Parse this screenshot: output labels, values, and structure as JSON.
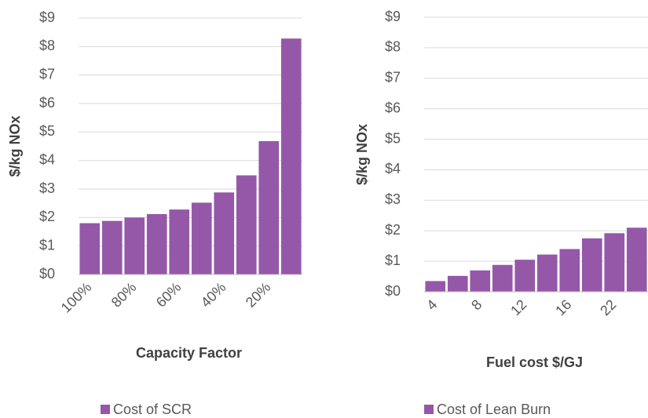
{
  "chart_data": [
    {
      "type": "bar",
      "ylabel": "$/kg NOx",
      "xlabel": "Capacity Factor",
      "categories": [
        "100%",
        null,
        "80%",
        null,
        "60%",
        null,
        "40%",
        null,
        "20%",
        null
      ],
      "series": [
        {
          "name": "Cost of SCR",
          "color": "#9558a8",
          "values": [
            1.8,
            1.88,
            2.0,
            2.12,
            2.28,
            2.52,
            2.88,
            3.48,
            4.68,
            8.28
          ]
        }
      ],
      "ylim": [
        0,
        9
      ],
      "yticks": [
        {
          "value": 0,
          "label": "$0"
        },
        {
          "value": 1,
          "label": "$1"
        },
        {
          "value": 2,
          "label": "$2"
        },
        {
          "value": 3,
          "label": "$3"
        },
        {
          "value": 4,
          "label": "$4"
        },
        {
          "value": 5,
          "label": "$5"
        },
        {
          "value": 6,
          "label": "$6"
        },
        {
          "value": 7,
          "label": "$7"
        },
        {
          "value": 8,
          "label": "$8"
        },
        {
          "value": 9,
          "label": "$9"
        }
      ],
      "grid": true
    },
    {
      "type": "bar",
      "ylabel": "$/kg NOx",
      "xlabel": "Fuel cost $/GJ",
      "categories": [
        "4",
        null,
        "8",
        null,
        "12",
        null,
        "16",
        null,
        "22",
        null
      ],
      "series": [
        {
          "name": "Cost of Lean Burn",
          "color": "#9558a8",
          "values": [
            0.35,
            0.52,
            0.7,
            0.88,
            1.05,
            1.22,
            1.4,
            1.75,
            1.92,
            2.1
          ]
        }
      ],
      "ylim": [
        0,
        9
      ],
      "yticks": [
        {
          "value": 0,
          "label": "$0"
        },
        {
          "value": 1,
          "label": "$1"
        },
        {
          "value": 2,
          "label": "$2"
        },
        {
          "value": 3,
          "label": "$3"
        },
        {
          "value": 4,
          "label": "$4"
        },
        {
          "value": 5,
          "label": "$5"
        },
        {
          "value": 6,
          "label": "$6"
        },
        {
          "value": 7,
          "label": "$7"
        },
        {
          "value": 8,
          "label": "$8"
        },
        {
          "value": 9,
          "label": "$9"
        }
      ],
      "grid": true
    }
  ]
}
